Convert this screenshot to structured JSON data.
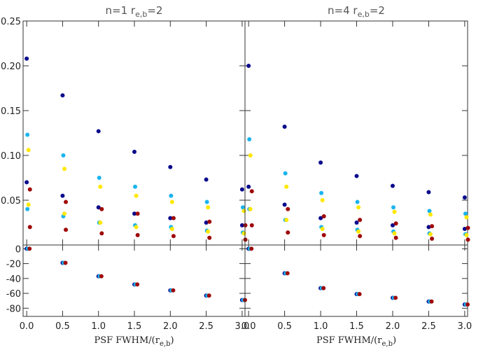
{
  "chart_data": [
    {
      "type": "scatter",
      "title": "n=1 r",
      "title_sub": "e,b",
      "title_suffix": "=2",
      "xlim": [
        -0.05,
        3.04
      ],
      "ylim": [
        0,
        0.25
      ],
      "yticks": [
        {
          "value": 0.05,
          "label": "0.05"
        },
        {
          "value": 0.1,
          "label": "0.10"
        },
        {
          "value": 0.15,
          "label": "0.15"
        },
        {
          "value": 0.2,
          "label": "0.20"
        },
        {
          "value": 0.25,
          "label": "0.25"
        }
      ],
      "series": [
        {
          "color": "#0a0a8c",
          "x": [
            0,
            0,
            0.5,
            0.5,
            1,
            1,
            1.5,
            1.5,
            2,
            2,
            2.5,
            2.5,
            3,
            3
          ],
          "y": [
            0.208,
            0.07,
            0.167,
            0.055,
            0.127,
            0.042,
            0.104,
            0.035,
            0.087,
            0.03,
            0.073,
            0.025,
            0.062,
            0.022
          ]
        },
        {
          "color": "#1ab4ee",
          "x": [
            0.01,
            0.01,
            0.51,
            0.51,
            1.01,
            1.01,
            1.51,
            1.51,
            2.01,
            2.01,
            2.51,
            2.51,
            3.01,
            3.01
          ],
          "y": [
            0.123,
            0.04,
            0.1,
            0.032,
            0.075,
            0.025,
            0.065,
            0.022,
            0.055,
            0.02,
            0.048,
            0.016,
            0.042,
            0.014
          ]
        },
        {
          "color": "#ffe800",
          "x": [
            0.025,
            0.025,
            0.525,
            0.525,
            1.025,
            1.025,
            1.525,
            1.525,
            2.025,
            2.025,
            2.525,
            2.525,
            3.025,
            3.025
          ],
          "y": [
            0.106,
            0.045,
            0.085,
            0.035,
            0.065,
            0.025,
            0.055,
            0.02,
            0.048,
            0.018,
            0.042,
            0.015,
            0.038,
            0.013
          ]
        },
        {
          "color": "#a00808",
          "x": [
            0.045,
            0.045,
            0.545,
            0.545,
            1.045,
            1.045,
            1.545,
            1.545,
            2.045,
            2.045,
            2.545,
            2.545,
            3.045,
            3.045
          ],
          "y": [
            0.062,
            0.02,
            0.048,
            0.017,
            0.04,
            0.013,
            0.035,
            0.011,
            0.03,
            0.01,
            0.026,
            0.008,
            0.022,
            0.006
          ]
        }
      ]
    },
    {
      "type": "scatter",
      "title": "n=4 r",
      "title_sub": "e,b",
      "title_suffix": "=2",
      "xlim": [
        -0.05,
        3.04
      ],
      "ylim": [
        0,
        0.25
      ],
      "series": [
        {
          "color": "#0a0a8c",
          "x": [
            0,
            0,
            0.5,
            0.5,
            1,
            1,
            1.5,
            1.5,
            2,
            2,
            2.5,
            2.5,
            3,
            3
          ],
          "y": [
            0.2,
            0.065,
            0.132,
            0.045,
            0.092,
            0.03,
            0.077,
            0.025,
            0.066,
            0.022,
            0.059,
            0.02,
            0.053,
            0.018
          ]
        },
        {
          "color": "#1ab4ee",
          "x": [
            0.01,
            0.01,
            0.51,
            0.51,
            1.01,
            1.01,
            1.51,
            1.51,
            2.01,
            2.01,
            2.51,
            2.51,
            3.01,
            3.01
          ],
          "y": [
            0.118,
            0.04,
            0.08,
            0.028,
            0.058,
            0.02,
            0.048,
            0.017,
            0.042,
            0.015,
            0.038,
            0.013,
            0.035,
            0.012
          ]
        },
        {
          "color": "#ffe800",
          "x": [
            0.025,
            0.025,
            0.525,
            0.525,
            1.025,
            1.025,
            1.525,
            1.525,
            2.025,
            2.025,
            2.525,
            2.525,
            3.025,
            3.025
          ],
          "y": [
            0.1,
            0.04,
            0.065,
            0.028,
            0.05,
            0.018,
            0.042,
            0.015,
            0.037,
            0.013,
            0.034,
            0.012,
            0.031,
            0.011
          ]
        },
        {
          "color": "#a00808",
          "x": [
            0.045,
            0.045,
            0.545,
            0.545,
            1.045,
            1.045,
            1.545,
            1.545,
            2.045,
            2.045,
            2.545,
            2.545,
            3.045,
            3.045
          ],
          "y": [
            0.06,
            0.022,
            0.04,
            0.014,
            0.032,
            0.011,
            0.028,
            0.01,
            0.024,
            0.008,
            0.021,
            0.007,
            0.019,
            0.006
          ]
        }
      ]
    },
    {
      "type": "scatter",
      "x_label": "PSF FWHM/(r",
      "x_label_sub": "e,b",
      "x_label_suffix": ")",
      "xlim": [
        -0.05,
        3.04
      ],
      "ylim": [
        -91,
        5
      ],
      "xticks": [
        {
          "value": 0,
          "label": "0.0"
        },
        {
          "value": 0.5,
          "label": "0.5"
        },
        {
          "value": 1,
          "label": "1.0"
        },
        {
          "value": 1.5,
          "label": "1.5"
        },
        {
          "value": 2,
          "label": "2.0"
        },
        {
          "value": 2.5,
          "label": "2.5"
        },
        {
          "value": 3,
          "label": "3.0"
        }
      ],
      "yticks": [
        0,
        -20,
        -40,
        -60,
        -80
      ],
      "series": [
        {
          "color": "#0a0a8c",
          "x": [
            0,
            0.5,
            1,
            1.5,
            2,
            2.5,
            3
          ],
          "y": [
            0,
            -19,
            -37,
            -48,
            -56,
            -63,
            -69
          ]
        },
        {
          "color": "#1ab4ee",
          "x": [
            0.015,
            0.515,
            1.015,
            1.515,
            2.015,
            2.515,
            3.015
          ],
          "y": [
            0,
            -19,
            -37,
            -48,
            -56,
            -63,
            -69
          ]
        },
        {
          "color": "#a00808",
          "x": [
            0.04,
            0.54,
            1.04,
            1.54,
            2.04,
            2.54,
            3.04
          ],
          "y": [
            0,
            -19,
            -37,
            -48,
            -56,
            -63,
            -69
          ]
        }
      ]
    },
    {
      "type": "scatter",
      "x_label": "PSF FWHM/(r",
      "x_label_sub": "e,b",
      "x_label_suffix": ")",
      "xlim": [
        -0.05,
        3.04
      ],
      "ylim": [
        -91,
        5
      ],
      "xticks": [
        {
          "value": 0,
          "label": "0.0"
        },
        {
          "value": 0.5,
          "label": "0.5"
        },
        {
          "value": 1,
          "label": "1.0"
        },
        {
          "value": 1.5,
          "label": "1.5"
        },
        {
          "value": 2,
          "label": "2.0"
        },
        {
          "value": 2.5,
          "label": "2.5"
        },
        {
          "value": 3,
          "label": "3.0"
        }
      ],
      "series": [
        {
          "color": "#0a0a8c",
          "x": [
            0,
            0.5,
            1,
            1.5,
            2,
            2.5,
            3
          ],
          "y": [
            0,
            -33,
            -53,
            -61,
            -66,
            -71,
            -75
          ]
        },
        {
          "color": "#1ab4ee",
          "x": [
            0.015,
            0.515,
            1.015,
            1.515,
            2.015,
            2.515,
            3.015
          ],
          "y": [
            0,
            -33,
            -53,
            -61,
            -66,
            -71,
            -75
          ]
        },
        {
          "color": "#a00808",
          "x": [
            0.04,
            0.54,
            1.04,
            1.54,
            2.04,
            2.54,
            3.04
          ],
          "y": [
            0,
            -33,
            -53,
            -61,
            -66,
            -71,
            -75
          ]
        }
      ]
    }
  ]
}
